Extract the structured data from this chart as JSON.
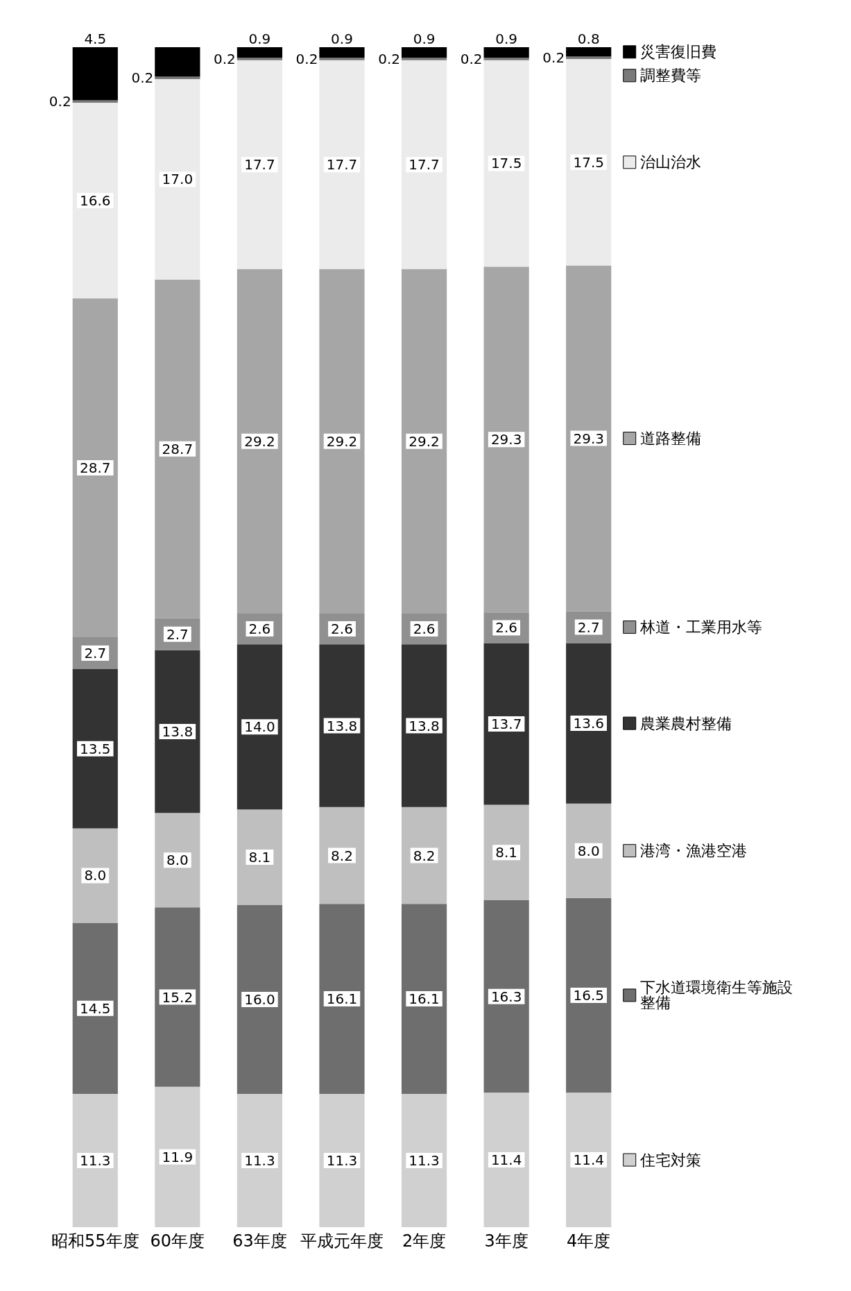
{
  "chart_data": {
    "type": "bar",
    "stacked": true,
    "legend": "right",
    "categories": [
      "昭和55年度",
      "60年度",
      "63年度",
      "平成元年度",
      "2年度",
      "3年度",
      "4年度"
    ],
    "series": [
      {
        "name": "住宅対策",
        "color": "#d0d0d0",
        "values": [
          11.3,
          11.9,
          11.3,
          11.3,
          11.3,
          11.4,
          11.4
        ],
        "value_labels": [
          "11.3",
          "11.9",
          "11.3",
          "11.3",
          "11.3",
          "11.4",
          "11.4"
        ]
      },
      {
        "name": "下水道環境衛生等施設整備",
        "color": "#6e6e6e",
        "values": [
          14.5,
          15.2,
          16.0,
          16.1,
          16.1,
          16.3,
          16.5
        ],
        "value_labels": [
          "14.5",
          "15.2",
          "16.0",
          "16.1",
          "16.1",
          "16.3",
          "16.5"
        ]
      },
      {
        "name": "港湾・漁港空港",
        "color": "#bfbfbf",
        "values": [
          8.0,
          8.0,
          8.1,
          8.2,
          8.2,
          8.1,
          8.0
        ],
        "value_labels": [
          "8.0",
          "8.0",
          "8.1",
          "8.2",
          "8.2",
          "8.1",
          "8.0"
        ]
      },
      {
        "name": "農業農村整備",
        "color": "#333333",
        "values": [
          13.5,
          13.8,
          14.0,
          13.8,
          13.8,
          13.7,
          13.6
        ],
        "value_labels": [
          "13.5",
          "13.8",
          "14.0",
          "13.8",
          "13.8",
          "13.7",
          "13.6"
        ]
      },
      {
        "name": "林道・工業用水等",
        "color": "#909090",
        "values": [
          2.7,
          2.7,
          2.6,
          2.6,
          2.6,
          2.6,
          2.7
        ],
        "value_labels": [
          "2.7",
          "2.7",
          "2.6",
          "2.6",
          "2.6",
          "2.6",
          "2.7"
        ]
      },
      {
        "name": "道路整備",
        "color": "#a6a6a6",
        "values": [
          28.7,
          28.7,
          29.2,
          29.2,
          29.2,
          29.3,
          29.3
        ],
        "value_labels": [
          "28.7",
          "28.7",
          "29.2",
          "29.2",
          "29.2",
          "29.3",
          "29.3"
        ]
      },
      {
        "name": "治山治水",
        "color": "#ebebeb",
        "values": [
          16.6,
          17.0,
          17.7,
          17.7,
          17.7,
          17.5,
          17.5
        ],
        "value_labels": [
          "16.6",
          "17.0",
          "17.7",
          "17.7",
          "17.7",
          "17.5",
          "17.5"
        ]
      },
      {
        "name": "調整費等",
        "color": "#7a7a7a",
        "values": [
          0.2,
          0.2,
          0.2,
          0.2,
          0.2,
          0.2,
          0.2
        ],
        "value_labels": [
          "0.2",
          "0.2",
          "0.2",
          "0.2",
          "0.2",
          "0.2",
          "0.2"
        ]
      },
      {
        "name": "災害復旧費",
        "color": "#000000",
        "values": [
          4.5,
          2.5,
          0.9,
          0.9,
          0.9,
          0.9,
          0.8
        ],
        "value_labels": [
          "4.5",
          null,
          "0.9",
          "0.9",
          "0.9",
          "0.9",
          "0.8"
        ]
      }
    ]
  }
}
